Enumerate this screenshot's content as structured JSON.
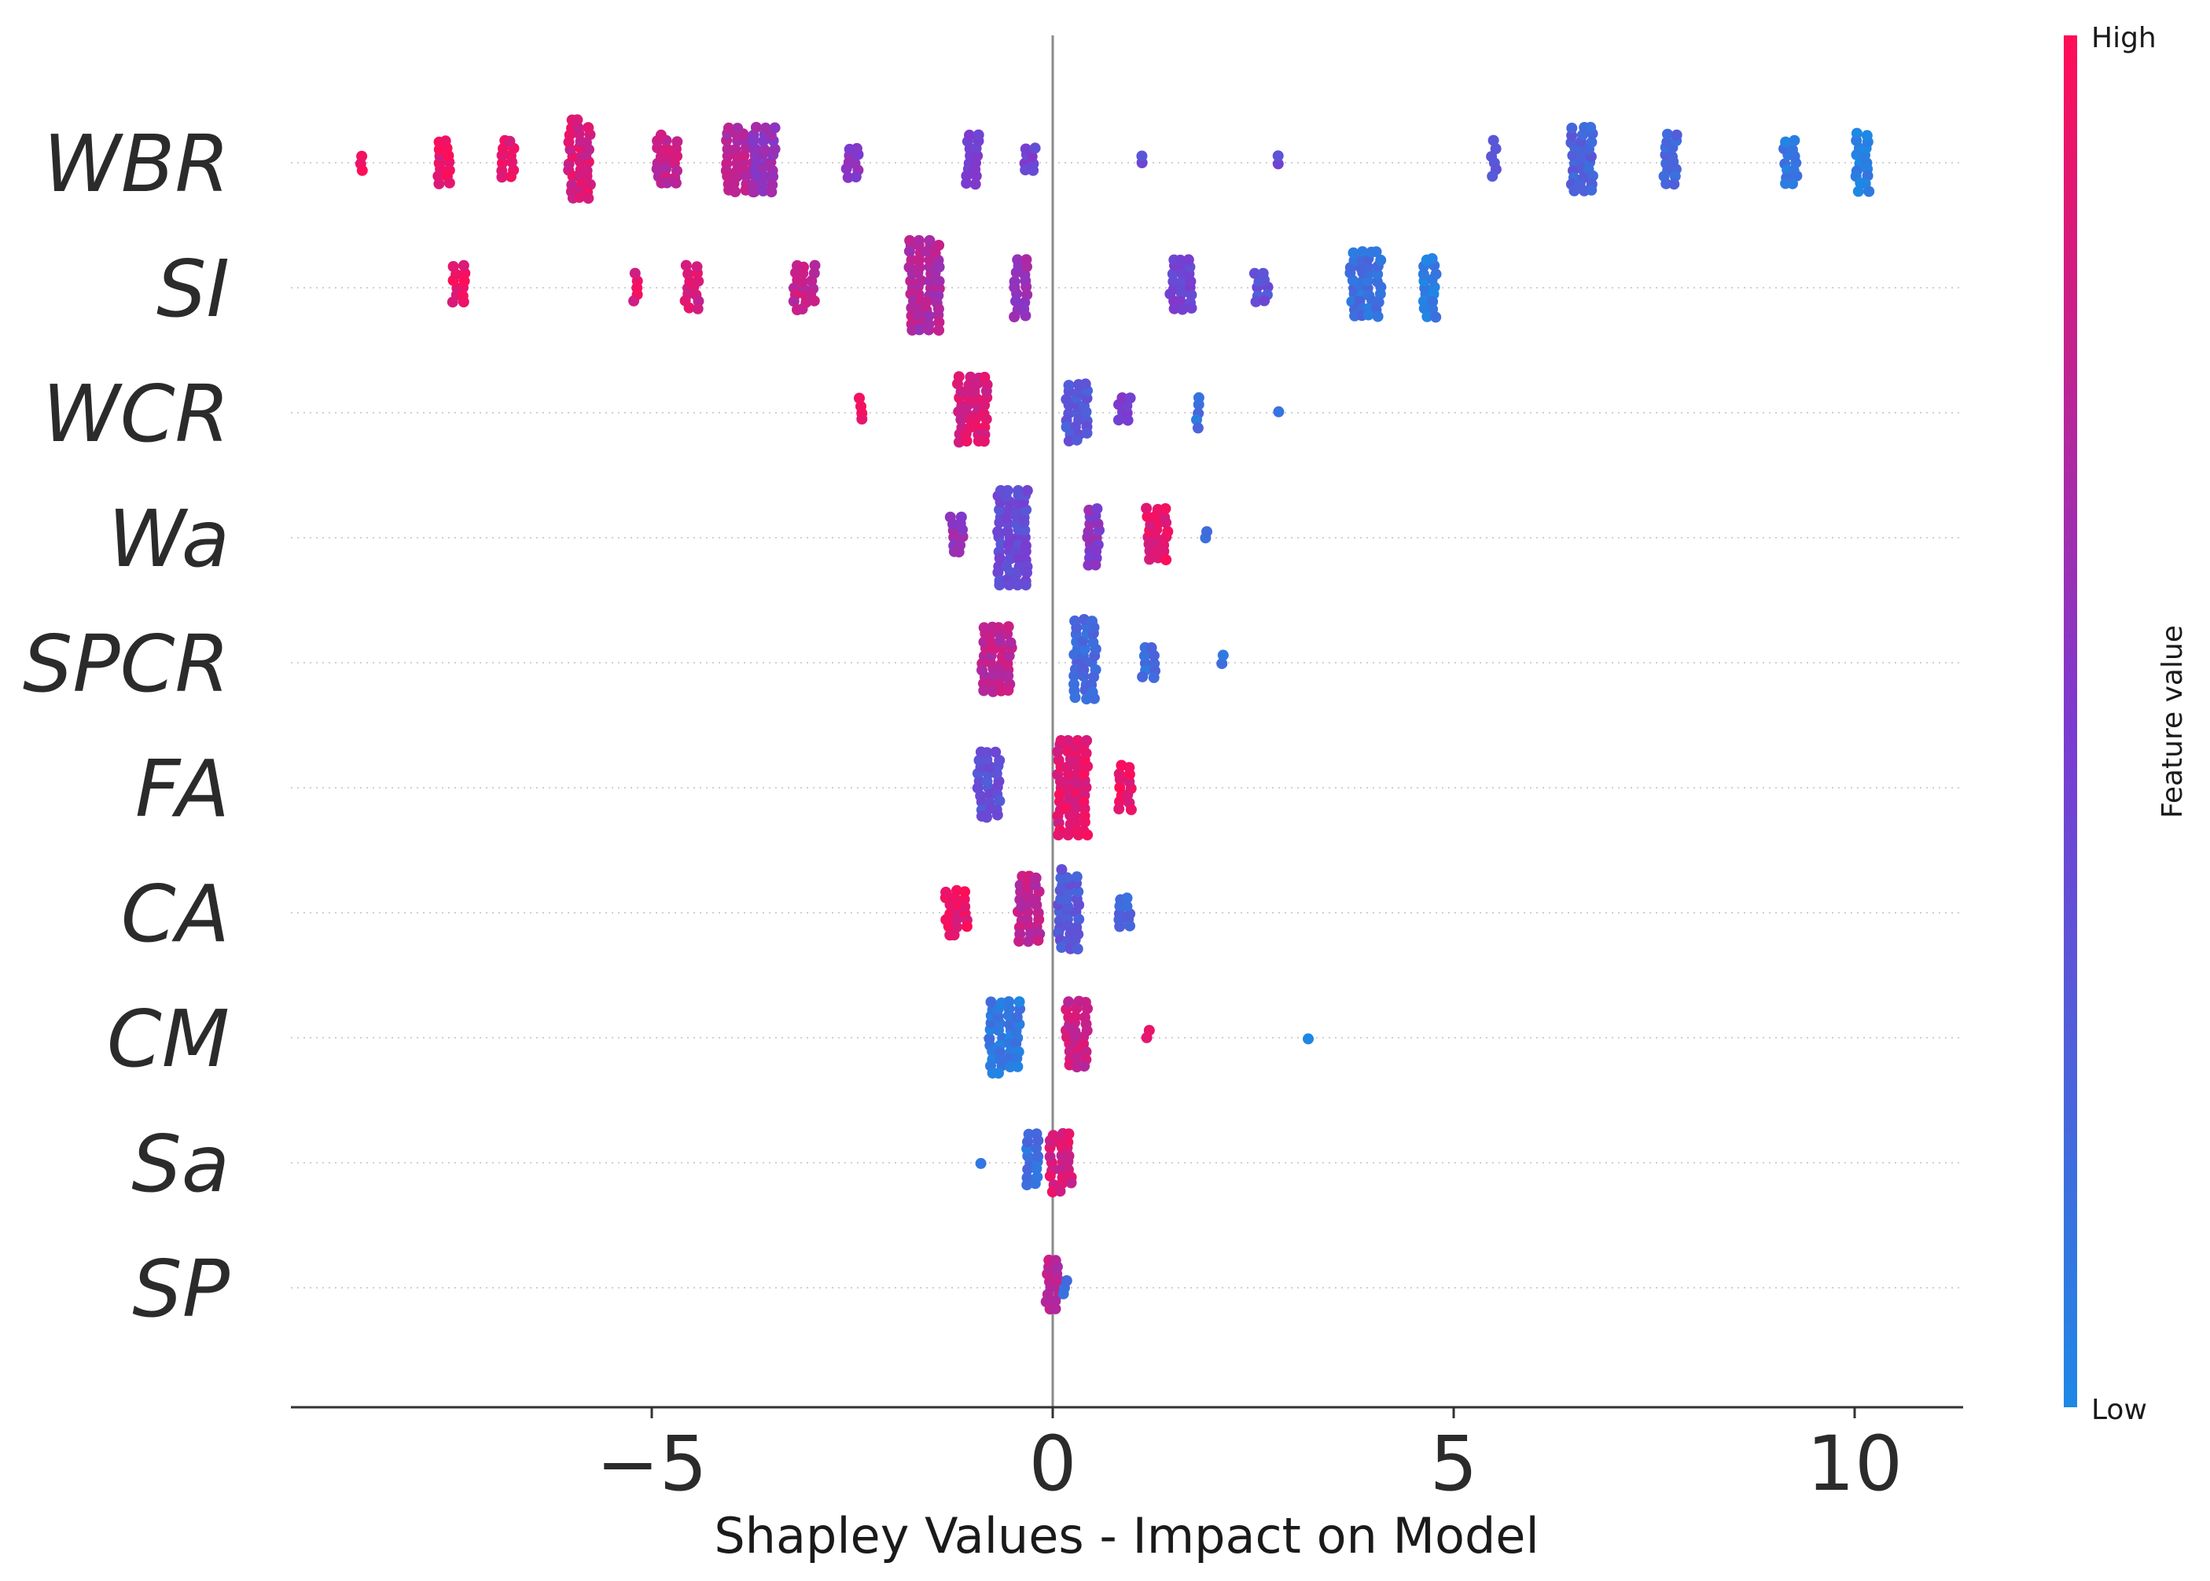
{
  "chart_data": {
    "type": "scatter",
    "subtype": "shap-beeswarm",
    "title": "",
    "xlabel": "Shapley Values - Impact on Model",
    "ylabel": "",
    "xlim": [
      -9.6,
      11.3
    ],
    "xticks": [
      -5,
      0,
      5,
      10
    ],
    "xtick_labels": [
      "−5",
      "0",
      "5",
      "10"
    ],
    "colorbar": {
      "title": "Feature value",
      "high_label": "High",
      "low_label": "Low",
      "high_color": "#ff0d57",
      "low_color": "#1e88e5"
    },
    "features": [
      {
        "name": "WBR",
        "clusters": [
          {
            "x": -8.6,
            "count": 3,
            "v": 0.95
          },
          {
            "x": -7.6,
            "count": 14,
            "v": 0.92
          },
          {
            "x": -6.8,
            "count": 12,
            "v": 0.9
          },
          {
            "x": -5.9,
            "count": 35,
            "v": 0.85
          },
          {
            "x": -4.8,
            "count": 22,
            "v": 0.78
          },
          {
            "x": -3.9,
            "count": 38,
            "v": 0.72
          },
          {
            "x": -3.6,
            "count": 30,
            "v": 0.6
          },
          {
            "x": -2.5,
            "count": 10,
            "v": 0.55
          },
          {
            "x": -1.0,
            "count": 16,
            "v": 0.5
          },
          {
            "x": -0.3,
            "count": 8,
            "v": 0.45
          },
          {
            "x": 1.1,
            "count": 2,
            "v": 0.4
          },
          {
            "x": 2.8,
            "count": 2,
            "v": 0.38
          },
          {
            "x": 5.5,
            "count": 6,
            "v": 0.3
          },
          {
            "x": 6.6,
            "count": 30,
            "v": 0.25
          },
          {
            "x": 7.7,
            "count": 16,
            "v": 0.2
          },
          {
            "x": 9.2,
            "count": 14,
            "v": 0.1
          },
          {
            "x": 10.1,
            "count": 18,
            "v": 0.05
          }
        ]
      },
      {
        "name": "SI",
        "clusters": [
          {
            "x": -7.4,
            "count": 12,
            "v": 0.95
          },
          {
            "x": -5.2,
            "count": 5,
            "v": 0.9
          },
          {
            "x": -4.5,
            "count": 14,
            "v": 0.85
          },
          {
            "x": -3.1,
            "count": 20,
            "v": 0.78
          },
          {
            "x": -1.6,
            "count": 55,
            "v": 0.7
          },
          {
            "x": -0.4,
            "count": 18,
            "v": 0.6
          },
          {
            "x": 1.6,
            "count": 24,
            "v": 0.45
          },
          {
            "x": 2.6,
            "count": 10,
            "v": 0.35
          },
          {
            "x": 3.9,
            "count": 40,
            "v": 0.15
          },
          {
            "x": 4.7,
            "count": 18,
            "v": 0.08
          }
        ]
      },
      {
        "name": "WCR",
        "clusters": [
          {
            "x": -2.4,
            "count": 4,
            "v": 0.95
          },
          {
            "x": -1.0,
            "count": 40,
            "v": 0.85
          },
          {
            "x": 0.3,
            "count": 26,
            "v": 0.3
          },
          {
            "x": 0.9,
            "count": 8,
            "v": 0.45
          },
          {
            "x": 1.8,
            "count": 5,
            "v": 0.15
          },
          {
            "x": 2.8,
            "count": 1,
            "v": 0.1
          }
        ]
      },
      {
        "name": "Wa",
        "clusters": [
          {
            "x": -1.2,
            "count": 12,
            "v": 0.6
          },
          {
            "x": -0.5,
            "count": 60,
            "v": 0.4
          },
          {
            "x": 0.5,
            "count": 18,
            "v": 0.55
          },
          {
            "x": 1.3,
            "count": 24,
            "v": 0.9
          },
          {
            "x": 1.9,
            "count": 2,
            "v": 0.15
          }
        ]
      },
      {
        "name": "SPCR",
        "clusters": [
          {
            "x": -0.7,
            "count": 40,
            "v": 0.75
          },
          {
            "x": 0.4,
            "count": 36,
            "v": 0.2
          },
          {
            "x": 1.2,
            "count": 10,
            "v": 0.15
          },
          {
            "x": 2.1,
            "count": 2,
            "v": 0.1
          }
        ]
      },
      {
        "name": "FA",
        "clusters": [
          {
            "x": -0.8,
            "count": 30,
            "v": 0.35
          },
          {
            "x": 0.25,
            "count": 60,
            "v": 0.9
          },
          {
            "x": 0.9,
            "count": 14,
            "v": 0.92
          }
        ]
      },
      {
        "name": "CA",
        "clusters": [
          {
            "x": -1.2,
            "count": 20,
            "v": 0.92
          },
          {
            "x": -0.3,
            "count": 30,
            "v": 0.75
          },
          {
            "x": 0.2,
            "count": 34,
            "v": 0.3
          },
          {
            "x": 0.9,
            "count": 10,
            "v": 0.2
          }
        ]
      },
      {
        "name": "CM",
        "clusters": [
          {
            "x": -0.6,
            "count": 42,
            "v": 0.1
          },
          {
            "x": 0.3,
            "count": 30,
            "v": 0.8
          },
          {
            "x": 1.2,
            "count": 2,
            "v": 0.9
          },
          {
            "x": 3.2,
            "count": 1,
            "v": 0.1
          }
        ]
      },
      {
        "name": "Sa",
        "clusters": [
          {
            "x": -0.9,
            "count": 1,
            "v": 0.1
          },
          {
            "x": -0.25,
            "count": 16,
            "v": 0.15
          },
          {
            "x": 0.1,
            "count": 26,
            "v": 0.85
          }
        ]
      },
      {
        "name": "SP",
        "clusters": [
          {
            "x": 0.0,
            "count": 16,
            "v": 0.75
          },
          {
            "x": 0.15,
            "count": 3,
            "v": 0.15
          }
        ]
      }
    ]
  }
}
